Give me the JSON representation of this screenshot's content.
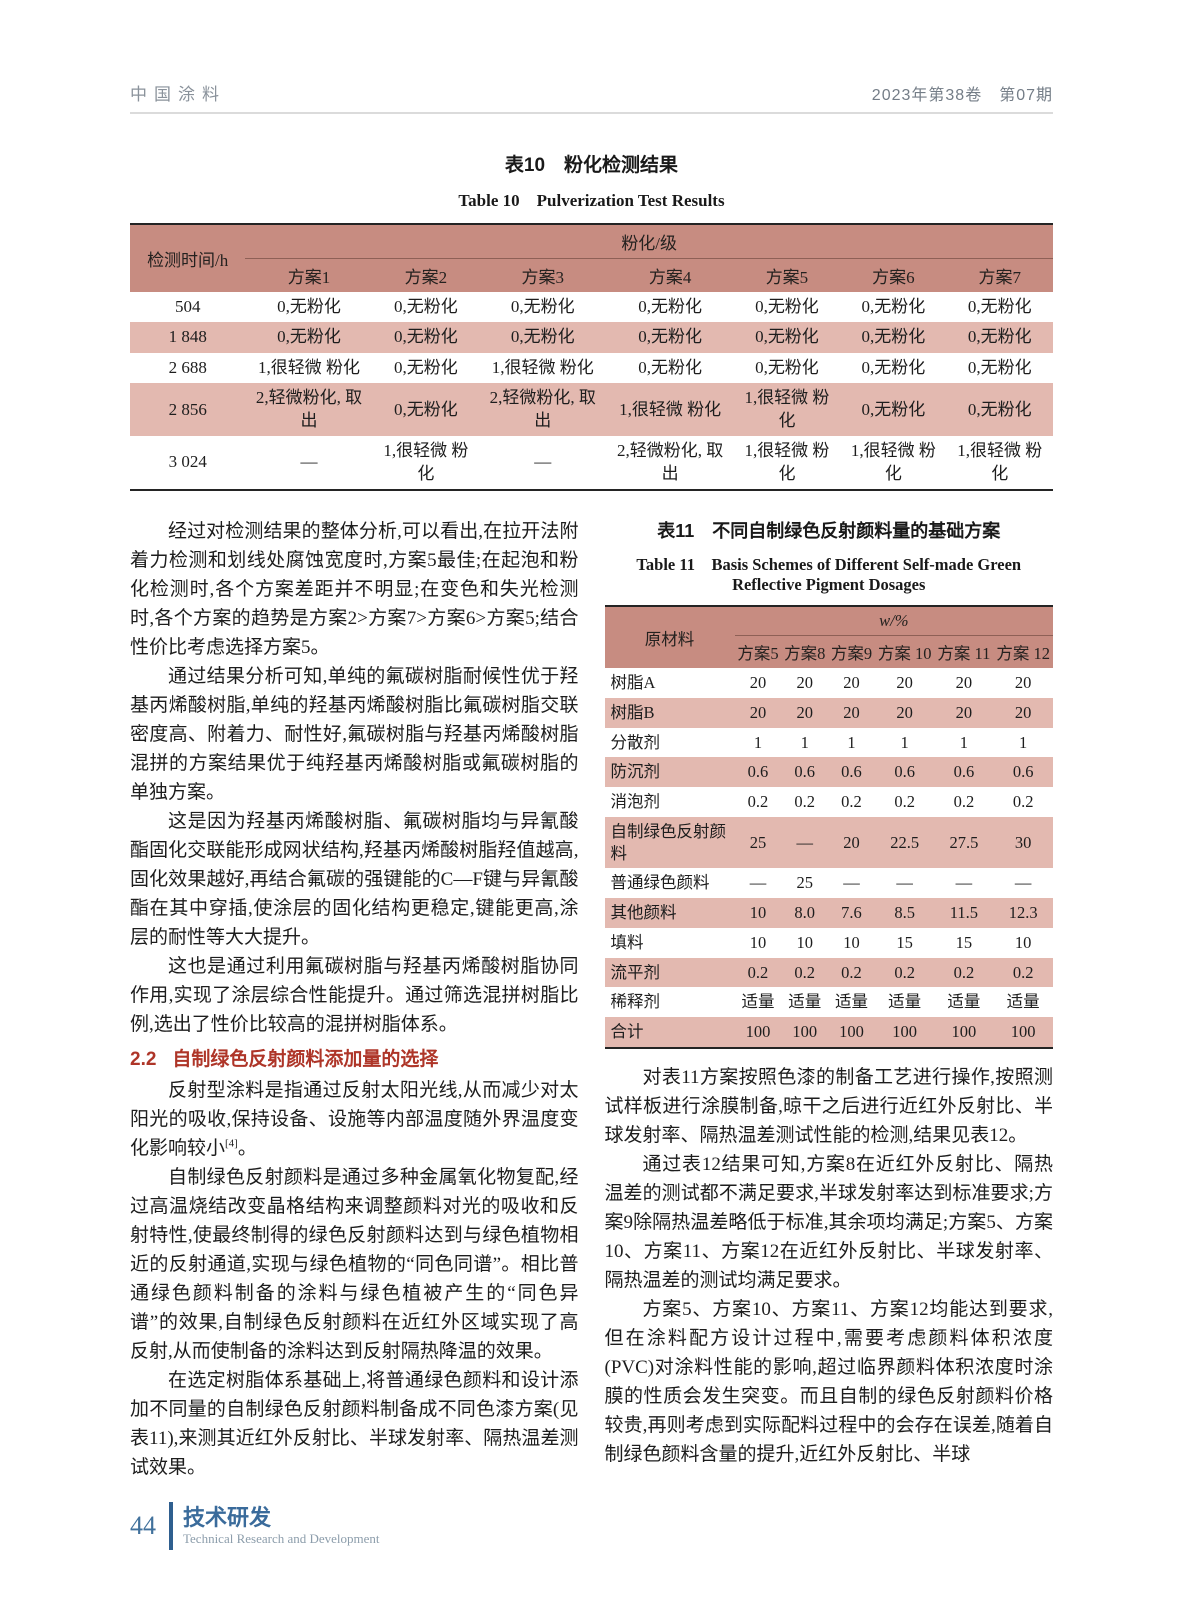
{
  "colors": {
    "table_header_pink": "#c78c81",
    "table_row_shade_pink": "#e3b9b0",
    "section_heading_red": "#ae3528",
    "footer_blue": "#3a6b9b",
    "running_head_gray": "#8a929b"
  },
  "header": {
    "journal": "中国涂料",
    "issue": "2023年第38卷　第07期"
  },
  "table10": {
    "title_zh": "表10　粉化检测结果",
    "title_en": "Table 10　Pulverization Test Results",
    "row_header": "检测时间/h",
    "group_header": "粉化/级",
    "columns": [
      "方案1",
      "方案2",
      "方案3",
      "方案4",
      "方案5",
      "方案6",
      "方案7"
    ],
    "rows": [
      {
        "label": "504",
        "shaded": false,
        "cells": [
          "0,无粉化",
          "0,无粉化",
          "0,无粉化",
          "0,无粉化",
          "0,无粉化",
          "0,无粉化",
          "0,无粉化"
        ]
      },
      {
        "label": "1 848",
        "shaded": true,
        "cells": [
          "0,无粉化",
          "0,无粉化",
          "0,无粉化",
          "0,无粉化",
          "0,无粉化",
          "0,无粉化",
          "0,无粉化"
        ]
      },
      {
        "label": "2 688",
        "shaded": false,
        "cells": [
          "1,很轻微 粉化",
          "0,无粉化",
          "1,很轻微 粉化",
          "0,无粉化",
          "0,无粉化",
          "0,无粉化",
          "0,无粉化"
        ]
      },
      {
        "label": "2 856",
        "shaded": true,
        "cells": [
          "2,轻微粉化, 取出",
          "0,无粉化",
          "2,轻微粉化, 取出",
          "1,很轻微 粉化",
          "1,很轻微 粉化",
          "0,无粉化",
          "0,无粉化"
        ]
      },
      {
        "label": "3 024",
        "shaded": false,
        "cells": [
          "—",
          "1,很轻微 粉化",
          "—",
          "2,轻微粉化, 取出",
          "1,很轻微 粉化",
          "1,很轻微 粉化",
          "1,很轻微 粉化"
        ]
      }
    ]
  },
  "left_column": {
    "blocks": [
      {
        "type": "p",
        "text": "经过对检测结果的整体分析,可以看出,在拉开法附着力检测和划线处腐蚀宽度时,方案5最佳;在起泡和粉化检测时,各个方案差距并不明显;在变色和失光检测时,各个方案的趋势是方案2>方案7>方案6>方案5;结合性价比考虑选择方案5。"
      },
      {
        "type": "p",
        "text": "通过结果分析可知,单纯的氟碳树脂耐候性优于羟基丙烯酸树脂,单纯的羟基丙烯酸树脂比氟碳树脂交联密度高、附着力、耐性好,氟碳树脂与羟基丙烯酸树脂混拼的方案结果优于纯羟基丙烯酸树脂或氟碳树脂的单独方案。"
      },
      {
        "type": "p",
        "text": "这是因为羟基丙烯酸树脂、氟碳树脂均与异氰酸酯固化交联能形成网状结构,羟基丙烯酸树脂羟值越高,固化效果越好,再结合氟碳的强键能的C—F键与异氰酸酯在其中穿插,使涂层的固化结构更稳定,键能更高,涂层的耐性等大大提升。"
      },
      {
        "type": "p",
        "text": "这也是通过利用氟碳树脂与羟基丙烯酸树脂协同作用,实现了涂层综合性能提升。通过筛选混拼树脂比例,选出了性价比较高的混拼树脂体系。"
      },
      {
        "type": "h",
        "num": "2.2",
        "title": "自制绿色反射颜料添加量的选择"
      },
      {
        "type": "p",
        "segments": [
          "反射型涂料是指通过反射太阳光线,从而减少对太阳光的吸收,保持设备、设施等内部温度随外界温度变化影响较小",
          {
            "sup": "[4]"
          },
          "。"
        ]
      },
      {
        "type": "p",
        "text": "自制绿色反射颜料是通过多种金属氧化物复配,经过高温烧结改变晶格结构来调整颜料对光的吸收和反射特性,使最终制得的绿色反射颜料达到与绿色植物相近的反射通道,实现与绿色植物的“同色同谱”。相比普通绿色颜料制备的涂料与绿色植被产生的“同色异谱”的效果,自制绿色反射颜料在近红外区域实现了高反射,从而使制备的涂料达到反射隔热降温的效果。"
      },
      {
        "type": "p",
        "text": "在选定树脂体系基础上,将普通绿色颜料和设计添加不同量的自制绿色反射颜料制备成不同色漆方案(见表11),来测其近红外反射比、半球发射率、隔热温差测试效果。"
      }
    ]
  },
  "table11": {
    "title_zh": "表11　不同自制绿色反射颜料量的基础方案",
    "title_en": "Table 11　Basis Schemes of Different Self-made Green Reflective Pigment Dosages",
    "row_header": "原材料",
    "group_header": "w/%",
    "columns": [
      "方案5",
      "方案8",
      "方案9",
      "方案 10",
      "方案 11",
      "方案 12"
    ],
    "rows": [
      {
        "label": "树脂A",
        "shaded": false,
        "cells": [
          "20",
          "20",
          "20",
          "20",
          "20",
          "20"
        ]
      },
      {
        "label": "树脂B",
        "shaded": true,
        "cells": [
          "20",
          "20",
          "20",
          "20",
          "20",
          "20"
        ]
      },
      {
        "label": "分散剂",
        "shaded": false,
        "cells": [
          "1",
          "1",
          "1",
          "1",
          "1",
          "1"
        ]
      },
      {
        "label": "防沉剂",
        "shaded": true,
        "cells": [
          "0.6",
          "0.6",
          "0.6",
          "0.6",
          "0.6",
          "0.6"
        ]
      },
      {
        "label": "消泡剂",
        "shaded": false,
        "cells": [
          "0.2",
          "0.2",
          "0.2",
          "0.2",
          "0.2",
          "0.2"
        ]
      },
      {
        "label": "自制绿色反射颜料",
        "shaded": true,
        "cells": [
          "25",
          "—",
          "20",
          "22.5",
          "27.5",
          "30"
        ]
      },
      {
        "label": "普通绿色颜料",
        "shaded": false,
        "cells": [
          "—",
          "25",
          "—",
          "—",
          "—",
          "—"
        ]
      },
      {
        "label": "其他颜料",
        "shaded": true,
        "cells": [
          "10",
          "8.0",
          "7.6",
          "8.5",
          "11.5",
          "12.3"
        ]
      },
      {
        "label": "填料",
        "shaded": false,
        "cells": [
          "10",
          "10",
          "10",
          "15",
          "15",
          "10"
        ]
      },
      {
        "label": "流平剂",
        "shaded": true,
        "cells": [
          "0.2",
          "0.2",
          "0.2",
          "0.2",
          "0.2",
          "0.2"
        ]
      },
      {
        "label": "稀释剂",
        "shaded": false,
        "cells": [
          "适量",
          "适量",
          "适量",
          "适量",
          "适量",
          "适量"
        ]
      },
      {
        "label": "合计",
        "shaded": true,
        "cells": [
          "100",
          "100",
          "100",
          "100",
          "100",
          "100"
        ]
      }
    ]
  },
  "right_column": {
    "blocks": [
      {
        "type": "p",
        "text": "对表11方案按照色漆的制备工艺进行操作,按照测试样板进行涂膜制备,晾干之后进行近红外反射比、半球发射率、隔热温差测试性能的检测,结果见表12。"
      },
      {
        "type": "p",
        "text": "通过表12结果可知,方案8在近红外反射比、隔热温差的测试都不满足要求,半球发射率达到标准要求;方案9除隔热温差略低于标准,其余项均满足;方案5、方案10、方案11、方案12在近红外反射比、半球发射率、隔热温差的测试均满足要求。"
      },
      {
        "type": "p",
        "text": "方案5、方案10、方案11、方案12均能达到要求,但在涂料配方设计过程中,需要考虑颜料体积浓度(PVC)对涂料性能的影响,超过临界颜料体积浓度时涂膜的性质会发生突变。而且自制的绿色反射颜料价格较贵,再则考虑到实际配料过程中的会存在误差,随着自制绿色颜料含量的提升,近红外反射比、半球"
      }
    ]
  },
  "footer": {
    "page_number": "44",
    "section_zh": "技术研发",
    "section_en": "Technical Research and Development"
  }
}
